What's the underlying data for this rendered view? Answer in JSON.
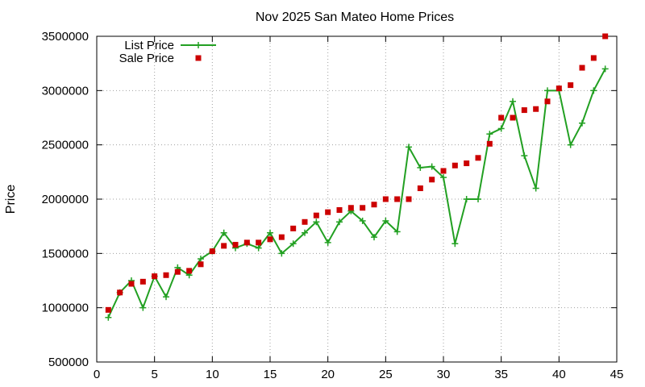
{
  "chart_data": {
    "type": "line",
    "title": "Nov 2025 San Mateo Home Prices",
    "xlabel": "",
    "ylabel": "Price",
    "xlim": [
      0,
      45
    ],
    "ylim": [
      500000,
      3500000
    ],
    "xticks": [
      0,
      5,
      10,
      15,
      20,
      25,
      30,
      35,
      40,
      45
    ],
    "yticks": [
      500000,
      1000000,
      1500000,
      2000000,
      2500000,
      3000000,
      3500000
    ],
    "grid": true,
    "legend_position": "top-left",
    "series": [
      {
        "name": "List Price",
        "style": "line+cross",
        "color": "#22a022",
        "x": [
          1,
          2,
          3,
          4,
          5,
          6,
          7,
          8,
          9,
          10,
          11,
          12,
          13,
          14,
          15,
          16,
          17,
          18,
          19,
          20,
          21,
          22,
          23,
          24,
          25,
          26,
          27,
          28,
          29,
          30,
          31,
          32,
          33,
          34,
          35,
          36,
          37,
          38,
          39,
          40,
          41,
          42,
          43,
          44
        ],
        "y": [
          910000,
          1140000,
          1250000,
          1000000,
          1290000,
          1100000,
          1370000,
          1300000,
          1450000,
          1520000,
          1690000,
          1550000,
          1590000,
          1550000,
          1690000,
          1500000,
          1590000,
          1690000,
          1790000,
          1600000,
          1790000,
          1890000,
          1800000,
          1650000,
          1800000,
          1700000,
          2480000,
          2290000,
          2300000,
          2200000,
          1590000,
          2000000,
          2000000,
          2600000,
          2650000,
          2900000,
          2400000,
          2100000,
          3000000,
          3000000,
          2500000,
          2700000,
          3000000,
          3200000
        ]
      },
      {
        "name": "Sale Price",
        "style": "square",
        "color": "#cc0000",
        "x": [
          1,
          2,
          3,
          4,
          5,
          6,
          7,
          8,
          9,
          10,
          11,
          12,
          13,
          14,
          15,
          16,
          17,
          18,
          19,
          20,
          21,
          22,
          23,
          24,
          25,
          26,
          27,
          28,
          29,
          30,
          31,
          32,
          33,
          34,
          35,
          36,
          37,
          38,
          39,
          40,
          41,
          42,
          43,
          44
        ],
        "y": [
          980000,
          1140000,
          1220000,
          1240000,
          1290000,
          1300000,
          1330000,
          1340000,
          1400000,
          1520000,
          1570000,
          1580000,
          1600000,
          1600000,
          1630000,
          1650000,
          1730000,
          1790000,
          1850000,
          1880000,
          1900000,
          1920000,
          1920000,
          1950000,
          2000000,
          2000000,
          2000000,
          2100000,
          2180000,
          2260000,
          2310000,
          2330000,
          2380000,
          2510000,
          2750000,
          2750000,
          2820000,
          2830000,
          2900000,
          3020000,
          3050000,
          3210000,
          3300000,
          3500000
        ]
      }
    ]
  }
}
